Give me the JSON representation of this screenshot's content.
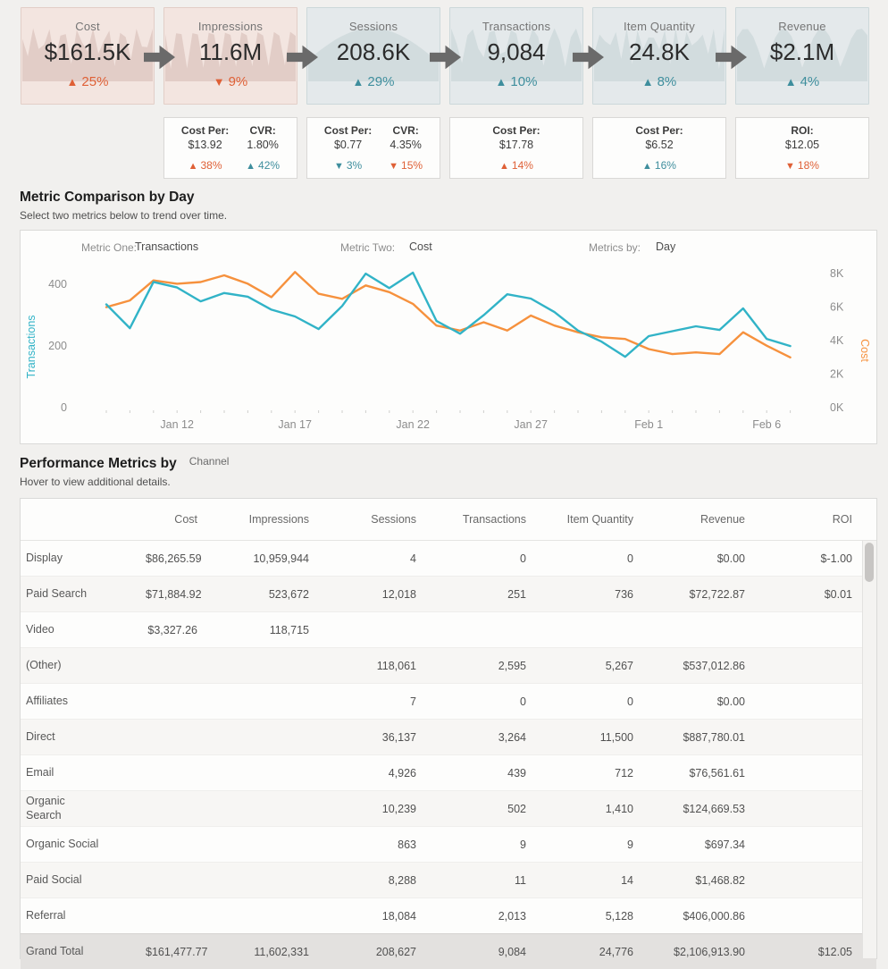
{
  "colors": {
    "orange": "#df6036",
    "teal": "#3e8e9d",
    "line_teal": "#31b3c7",
    "line_orange": "#f6913d",
    "arrow_grey": "#6a6a6a"
  },
  "kpi_cards": [
    {
      "title": "Cost",
      "value": "$161.5K",
      "change": "25%",
      "direction": "up",
      "tone": "orange",
      "style": "pink"
    },
    {
      "title": "Impressions",
      "value": "11.6M",
      "change": "9%",
      "direction": "down",
      "tone": "orange",
      "style": "pink"
    },
    {
      "title": "Sessions",
      "value": "208.6K",
      "change": "29%",
      "direction": "up",
      "tone": "teal",
      "style": "blue"
    },
    {
      "title": "Transactions",
      "value": "9,084",
      "change": "10%",
      "direction": "up",
      "tone": "teal",
      "style": "blue"
    },
    {
      "title": "Item Quantity",
      "value": "24.8K",
      "change": "8%",
      "direction": "up",
      "tone": "teal",
      "style": "blue"
    },
    {
      "title": "Revenue",
      "value": "$2.1M",
      "change": "4%",
      "direction": "up",
      "tone": "teal",
      "style": "blue"
    }
  ],
  "sub_cards": [
    {
      "metrics": [
        {
          "label": "Cost Per:",
          "value": "$13.92",
          "change": "38%",
          "direction": "up",
          "tone": "orange"
        },
        {
          "label": "CVR:",
          "value": "1.80%",
          "change": "42%",
          "direction": "up",
          "tone": "teal"
        }
      ]
    },
    {
      "metrics": [
        {
          "label": "Cost Per:",
          "value": "$0.77",
          "change": "3%",
          "direction": "down",
          "tone": "teal"
        },
        {
          "label": "CVR:",
          "value": "4.35%",
          "change": "15%",
          "direction": "down",
          "tone": "orange"
        }
      ]
    },
    {
      "metrics": [
        {
          "label": "Cost Per:",
          "value": "$17.78",
          "change": "14%",
          "direction": "up",
          "tone": "orange"
        }
      ]
    },
    {
      "metrics": [
        {
          "label": "Cost Per:",
          "value": "$6.52",
          "change": "16%",
          "direction": "up",
          "tone": "teal"
        }
      ]
    },
    {
      "metrics": [
        {
          "label": "ROI:",
          "value": "$12.05",
          "change": "18%",
          "direction": "down",
          "tone": "orange"
        }
      ]
    }
  ],
  "sections": {
    "trend": {
      "title": "Metric Comparison by Day",
      "subtitle": "Select two metrics below to trend over time.",
      "controls": [
        {
          "label": "Metric One:",
          "value": "Transactions"
        },
        {
          "label": "Metric Two:",
          "value": "Cost"
        },
        {
          "label": "Metrics by:",
          "value": "Day"
        }
      ]
    },
    "performance": {
      "title": "Performance Metrics by",
      "param": "Channel",
      "subtitle": "Hover to view additional details."
    }
  },
  "chart_data": {
    "type": "line",
    "x": [
      "Jan 9",
      "Jan 10",
      "Jan 11",
      "Jan 12",
      "Jan 13",
      "Jan 14",
      "Jan 15",
      "Jan 16",
      "Jan 17",
      "Jan 18",
      "Jan 19",
      "Jan 20",
      "Jan 21",
      "Jan 22",
      "Jan 23",
      "Jan 24",
      "Jan 25",
      "Jan 26",
      "Jan 27",
      "Jan 28",
      "Jan 29",
      "Jan 30",
      "Jan 31",
      "Feb 1",
      "Feb 2",
      "Feb 3",
      "Feb 4",
      "Feb 5",
      "Feb 6",
      "Feb 7"
    ],
    "x_tick_labels": [
      "Jan 12",
      "Jan 17",
      "Jan 22",
      "Jan 27",
      "Feb 1",
      "Feb 6"
    ],
    "x_tick_indices": [
      3,
      8,
      13,
      18,
      23,
      28
    ],
    "series": [
      {
        "name": "Cost",
        "axis": "right",
        "color": "#f6913d",
        "values": [
          6000,
          6400,
          7600,
          7400,
          7500,
          7900,
          7400,
          6600,
          8100,
          6800,
          6500,
          7300,
          6900,
          6200,
          4900,
          4600,
          5100,
          4600,
          5500,
          4900,
          4500,
          4200,
          4100,
          3500,
          3200,
          3300,
          3200,
          4500,
          3700,
          3000
        ]
      },
      {
        "name": "Transactions",
        "axis": "left",
        "color": "#31b3c7",
        "values": [
          335,
          258,
          408,
          390,
          345,
          372,
          360,
          318,
          296,
          255,
          330,
          435,
          388,
          438,
          281,
          240,
          300,
          368,
          354,
          310,
          250,
          214,
          165,
          232,
          248,
          264,
          252,
          322,
          223,
          200
        ]
      }
    ],
    "left_axis": {
      "title": "Transactions",
      "ticks": [
        "400",
        "200",
        "0"
      ],
      "tick_values": [
        400,
        200,
        0
      ],
      "max": 470
    },
    "right_axis": {
      "title": "Cost",
      "ticks": [
        "8K",
        "6K",
        "4K",
        "2K",
        "0K"
      ],
      "tick_values": [
        8000,
        6000,
        4000,
        2000,
        0
      ],
      "max": 8650
    },
    "grid": false,
    "legend_position": "none"
  },
  "table": {
    "columns": [
      "Cost",
      "Impressions",
      "Sessions",
      "Transactions",
      "Item Quantity",
      "Revenue",
      "ROI"
    ],
    "rows": [
      {
        "label": "Display",
        "cells": [
          "$86,265.59",
          "10,959,944",
          "4",
          "0",
          "0",
          "$0.00",
          "$-1.00"
        ]
      },
      {
        "label": "Paid Search",
        "cells": [
          "$71,884.92",
          "523,672",
          "12,018",
          "251",
          "736",
          "$72,722.87",
          "$0.01"
        ]
      },
      {
        "label": "Video",
        "cells": [
          "$3,327.26",
          "118,715",
          "",
          "",
          "",
          "",
          ""
        ]
      },
      {
        "label": "(Other)",
        "cells": [
          "",
          "",
          "118,061",
          "2,595",
          "5,267",
          "$537,012.86",
          ""
        ]
      },
      {
        "label": "Affiliates",
        "cells": [
          "",
          "",
          "7",
          "0",
          "0",
          "$0.00",
          ""
        ]
      },
      {
        "label": "Direct",
        "cells": [
          "",
          "",
          "36,137",
          "3,264",
          "11,500",
          "$887,780.01",
          ""
        ]
      },
      {
        "label": "Email",
        "cells": [
          "",
          "",
          "4,926",
          "439",
          "712",
          "$76,561.61",
          ""
        ]
      },
      {
        "label": "Organic Search",
        "wrap": true,
        "cells": [
          "",
          "",
          "10,239",
          "502",
          "1,410",
          "$124,669.53",
          ""
        ]
      },
      {
        "label": "Organic Social",
        "cells": [
          "",
          "",
          "863",
          "9",
          "9",
          "$697.34",
          ""
        ]
      },
      {
        "label": "Paid Social",
        "cells": [
          "",
          "",
          "8,288",
          "11",
          "14",
          "$1,468.82",
          ""
        ]
      },
      {
        "label": "Referral",
        "cells": [
          "",
          "",
          "18,084",
          "2,013",
          "5,128",
          "$406,000.86",
          ""
        ]
      }
    ],
    "grand_total": {
      "label": "Grand Total",
      "cells": [
        "$161,477.77",
        "11,602,331",
        "208,627",
        "9,084",
        "24,776",
        "$2,106,913.90",
        "$12.05"
      ]
    }
  }
}
